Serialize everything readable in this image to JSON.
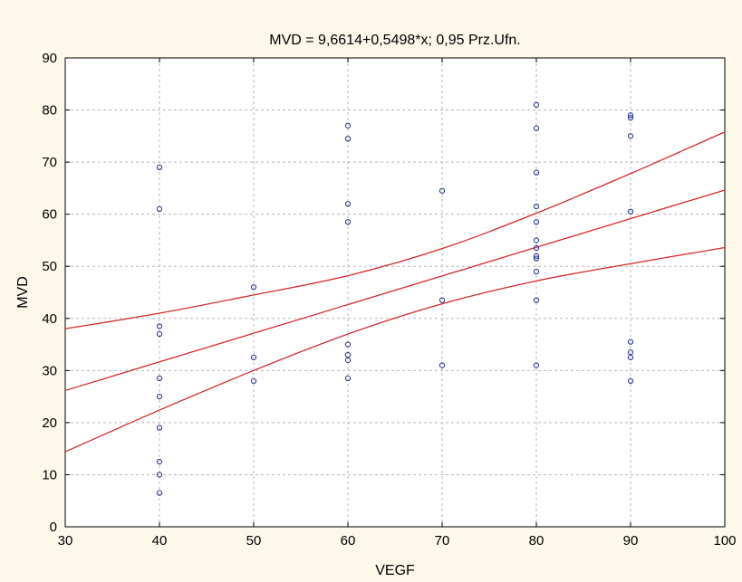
{
  "chart_data": {
    "type": "scatter",
    "title": "MVD = 9,6614+0,5498*x; 0,95 Prz.Ufn.",
    "xlabel": "VEGF",
    "ylabel": "MVD",
    "xlim": [
      30,
      100
    ],
    "ylim": [
      0,
      90
    ],
    "x_ticks": [
      30,
      40,
      50,
      60,
      70,
      80,
      90,
      100
    ],
    "y_ticks": [
      0,
      10,
      20,
      30,
      40,
      50,
      60,
      70,
      80,
      90
    ],
    "grid": true,
    "point_color": "#2b3a8f",
    "line_color": "#d42a2a",
    "points": [
      {
        "x": 40,
        "y": 69
      },
      {
        "x": 40,
        "y": 61
      },
      {
        "x": 40,
        "y": 38.5
      },
      {
        "x": 40,
        "y": 37
      },
      {
        "x": 40,
        "y": 28.5
      },
      {
        "x": 40,
        "y": 25
      },
      {
        "x": 40,
        "y": 19
      },
      {
        "x": 40,
        "y": 12.5
      },
      {
        "x": 40,
        "y": 10
      },
      {
        "x": 40,
        "y": 6.5
      },
      {
        "x": 50,
        "y": 46
      },
      {
        "x": 50,
        "y": 32.5
      },
      {
        "x": 50,
        "y": 28
      },
      {
        "x": 60,
        "y": 77
      },
      {
        "x": 60,
        "y": 74.5
      },
      {
        "x": 60,
        "y": 62
      },
      {
        "x": 60,
        "y": 58.5
      },
      {
        "x": 60,
        "y": 35
      },
      {
        "x": 60,
        "y": 33
      },
      {
        "x": 60,
        "y": 32
      },
      {
        "x": 60,
        "y": 28.5
      },
      {
        "x": 70,
        "y": 64.5
      },
      {
        "x": 70,
        "y": 43.5
      },
      {
        "x": 70,
        "y": 31
      },
      {
        "x": 80,
        "y": 81
      },
      {
        "x": 80,
        "y": 76.5
      },
      {
        "x": 80,
        "y": 68
      },
      {
        "x": 80,
        "y": 61.5
      },
      {
        "x": 80,
        "y": 58.5
      },
      {
        "x": 80,
        "y": 55
      },
      {
        "x": 80,
        "y": 53.5
      },
      {
        "x": 80,
        "y": 52
      },
      {
        "x": 80,
        "y": 51.5
      },
      {
        "x": 80,
        "y": 49
      },
      {
        "x": 80,
        "y": 43.5
      },
      {
        "x": 80,
        "y": 31
      },
      {
        "x": 90,
        "y": 79
      },
      {
        "x": 90,
        "y": 78.5
      },
      {
        "x": 90,
        "y": 75
      },
      {
        "x": 90,
        "y": 60.5
      },
      {
        "x": 90,
        "y": 35.5
      },
      {
        "x": 90,
        "y": 33.5
      },
      {
        "x": 90,
        "y": 32.5
      },
      {
        "x": 90,
        "y": 28
      }
    ],
    "lines": [
      {
        "kind": "regression",
        "x": [
          30,
          100
        ],
        "y": [
          26.16,
          64.64
        ]
      },
      {
        "kind": "upper-ci",
        "x": [
          30,
          40,
          50,
          60,
          70,
          80,
          90,
          100
        ],
        "y": [
          38,
          41,
          44.5,
          48.2,
          53.4,
          60.2,
          67.8,
          75.8
        ]
      },
      {
        "kind": "lower-ci",
        "x": [
          30,
          40,
          50,
          60,
          70,
          80,
          90,
          100
        ],
        "y": [
          14.4,
          22.4,
          30,
          37,
          42.8,
          47.2,
          50.5,
          53.6
        ]
      }
    ]
  }
}
